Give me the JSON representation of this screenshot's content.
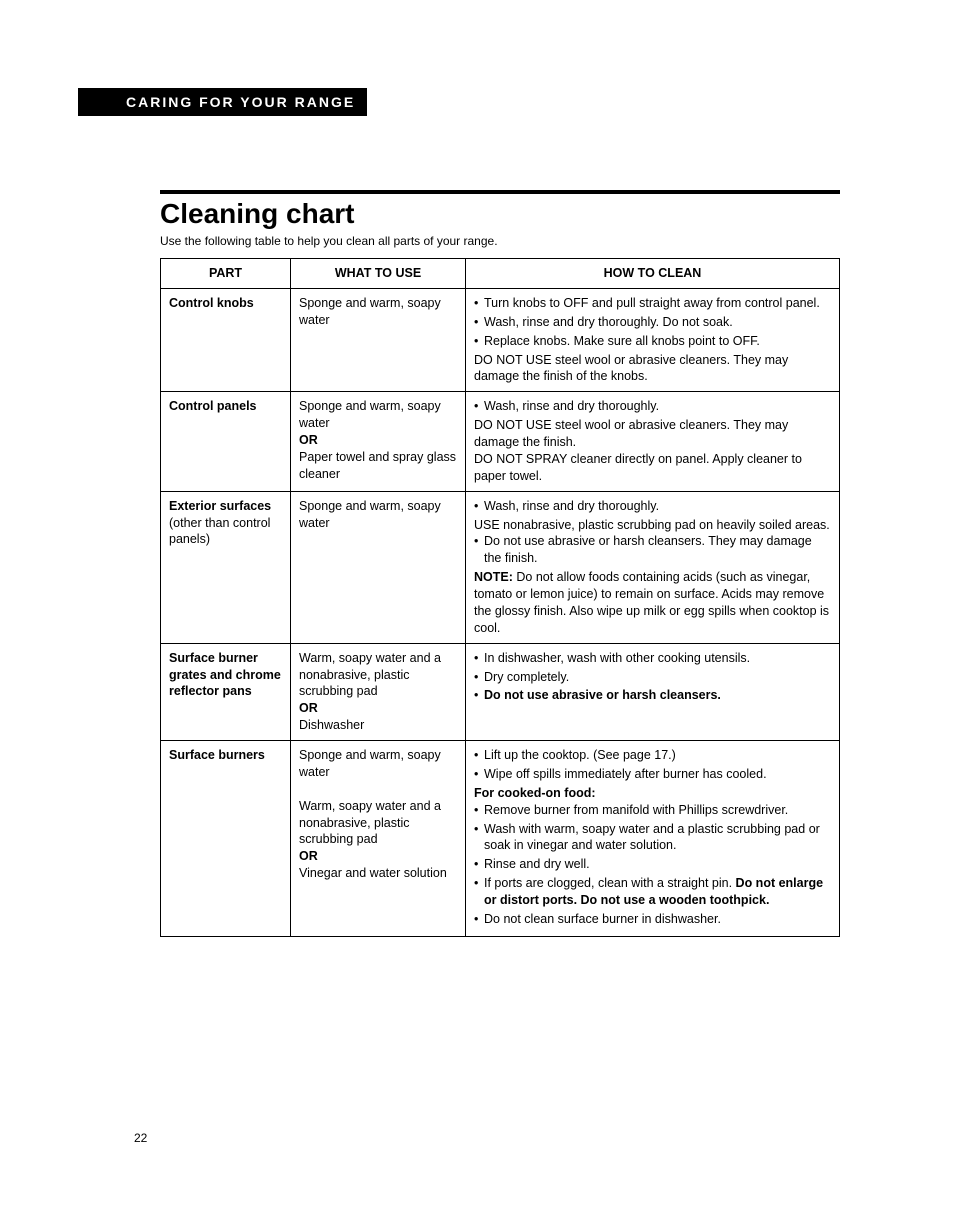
{
  "section_header": "CARING FOR YOUR RANGE",
  "title": "Cleaning chart",
  "subtitle": "Use the following table to help you clean all parts of your range.",
  "page_number": "22",
  "table": {
    "headers": {
      "part": "PART",
      "what": "WHAT TO USE",
      "how": "HOW TO CLEAN"
    },
    "rows": [
      {
        "part_main": "Control knobs",
        "part_sub": "",
        "what_lines": [
          "Sponge and warm, soapy water"
        ],
        "how": {
          "bullets_a": [
            "Turn knobs to OFF and pull straight away from control panel.",
            "Wash, rinse and dry thoroughly. Do not soak.",
            "Replace knobs. Make sure all knobs point to OFF."
          ],
          "tail_lines": [
            "DO NOT USE steel wool or abrasive cleaners. They may damage the finish of the knobs."
          ]
        }
      },
      {
        "part_main": "Control panels",
        "part_sub": "",
        "what_lines": [
          "Sponge and warm, soapy water",
          "OR",
          "Paper towel and spray glass cleaner"
        ],
        "how": {
          "bullets_a": [
            "Wash, rinse and dry thoroughly."
          ],
          "tail_lines": [
            "DO NOT USE steel wool or abrasive cleaners. They may damage the finish.",
            "DO NOT SPRAY cleaner directly on panel. Apply cleaner to paper towel."
          ]
        }
      },
      {
        "part_main": "Exterior surfaces",
        "part_sub": "(other than control panels)",
        "what_lines": [
          "Sponge and warm, soapy water"
        ],
        "how": {
          "bullets_a": [
            "Wash, rinse and dry thoroughly."
          ],
          "mid_lines": [
            "USE nonabrasive, plastic scrubbing pad on heavily soiled areas."
          ],
          "bullets_b": [
            "Do not use abrasive or harsh cleansers. They may damage the finish."
          ],
          "note_label": "NOTE:",
          "note_text": " Do not allow foods containing acids (such as vinegar, tomato or lemon juice) to remain on surface. Acids may remove the glossy finish. Also wipe up milk or egg spills when cooktop is cool."
        }
      },
      {
        "part_main": "Surface burner grates and chrome reflector pans",
        "part_sub": "",
        "what_lines": [
          "Warm, soapy water and a nonabrasive, plastic scrubbing pad",
          "OR",
          "Dishwasher"
        ],
        "how": {
          "bullets_a": [
            "In dishwasher, wash with other cooking utensils.",
            "Dry completely."
          ],
          "bold_bullet": "Do not use abrasive or harsh cleansers."
        }
      },
      {
        "part_main": "Surface burners",
        "part_sub": "",
        "what_lines": [
          "Sponge and warm, soapy water",
          "",
          "Warm, soapy water and a nonabrasive, plastic scrubbing pad",
          "OR",
          "Vinegar and water solution"
        ],
        "how": {
          "bullets_a": [
            "Lift up the cooktop. (See page 17.)",
            "Wipe off spills immediately after burner has cooled."
          ],
          "sub_head": "For cooked-on food:",
          "bullets_b": [
            "Remove burner from manifold with Phillips screwdriver.",
            "Wash with warm, soapy water and a plastic scrubbing pad or soak in vinegar and water solution.",
            "Rinse and dry well."
          ],
          "ports_lead": "If ports are clogged, clean with a straight pin.",
          "ports_bold": "Do not enlarge or distort ports. Do not use a wooden toothpick.",
          "bullets_c": [
            "Do not clean surface burner in dishwasher."
          ]
        }
      }
    ]
  }
}
